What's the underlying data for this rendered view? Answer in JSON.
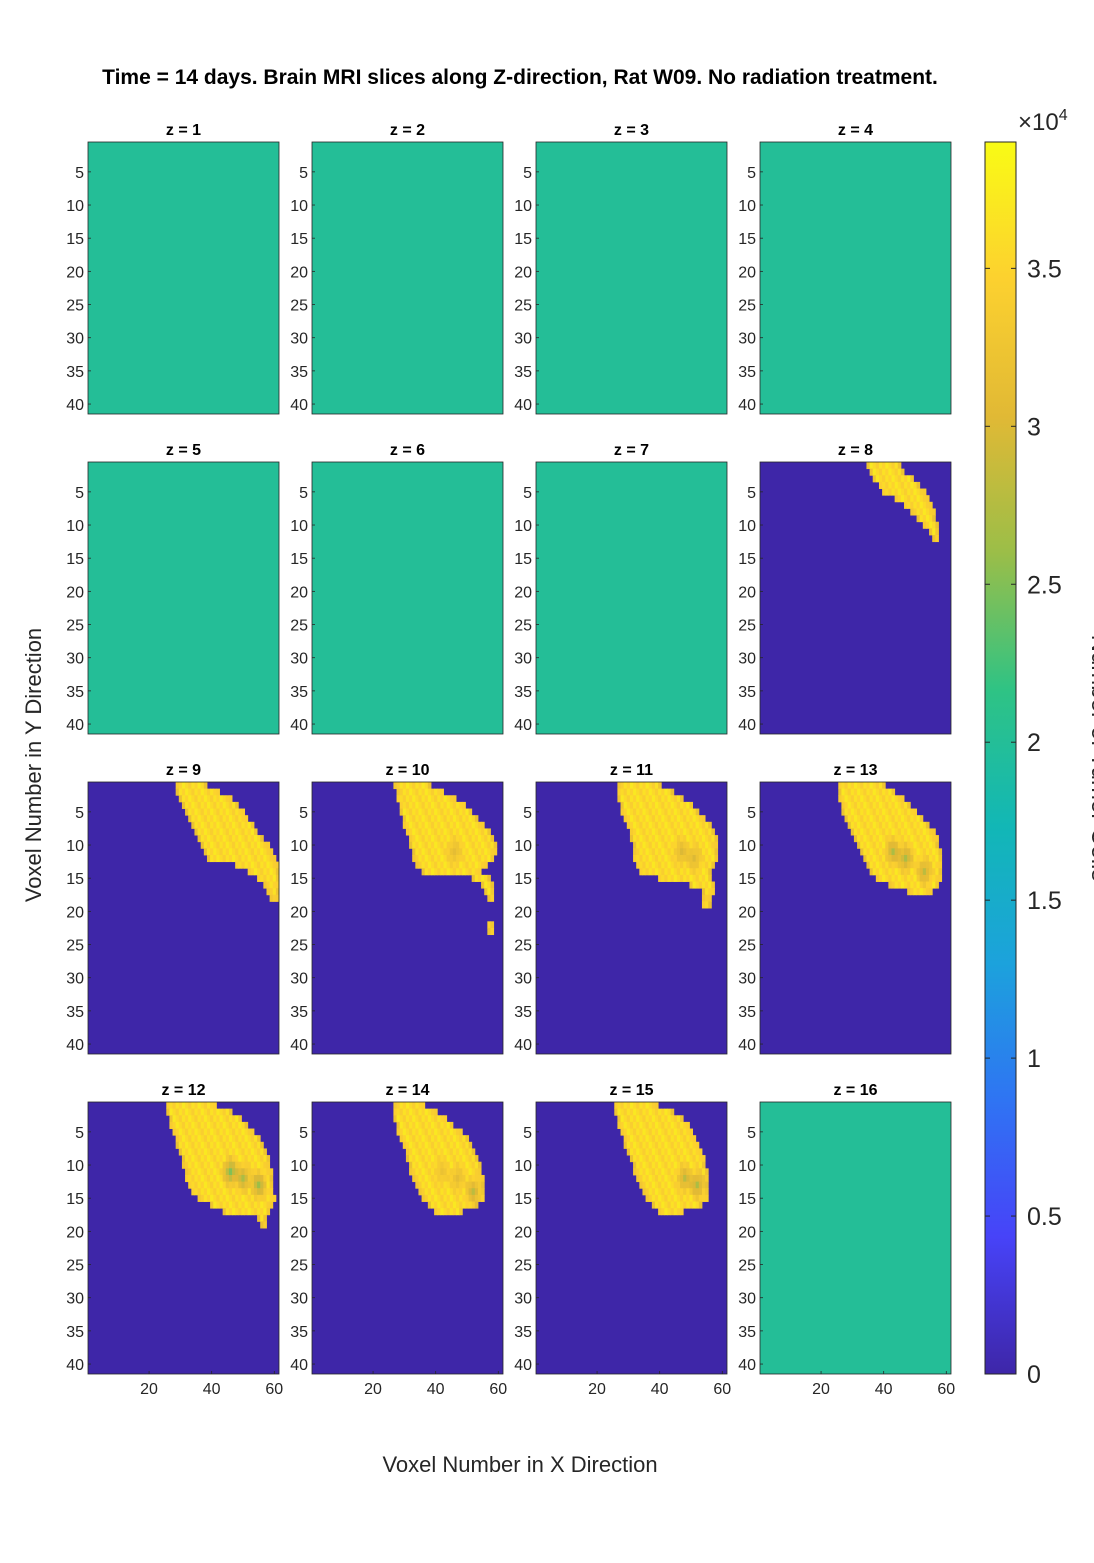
{
  "chart_data": {
    "type": "heatmap",
    "title": "Time = 14 days. Brain MRI slices along Z-direction, Rat W09. No radiation treatment.",
    "xlabel": "Voxel Number in X Direction",
    "ylabel": "Voxel Number in Y Direction",
    "grid_shape": [
      4,
      4
    ],
    "x_range": [
      1,
      61
    ],
    "y_range": [
      1,
      41
    ],
    "x_ticks": [
      20,
      40,
      60
    ],
    "y_ticks": [
      5,
      10,
      15,
      20,
      25,
      30,
      35,
      40
    ],
    "grid": false,
    "colorbar": {
      "label": "Number of Tumor Cells",
      "exponent_label": "×10",
      "exponent": "4",
      "range": [
        0,
        39000
      ],
      "ticks": [
        0,
        0.5,
        1,
        1.5,
        2,
        2.5,
        3,
        3.5
      ],
      "tick_labels": [
        "0",
        "0.5",
        "1",
        "1.5",
        "2",
        "2.5",
        "3",
        "3.5"
      ],
      "colormap": "parula",
      "colors": [
        "#3e26a8",
        "#4743f8",
        "#2f74f3",
        "#1ca2dc",
        "#12b7b6",
        "#2fc384",
        "#9bbe48",
        "#e1b935",
        "#fcd12f",
        "#f9fb15"
      ]
    },
    "panels": [
      {
        "label": "z = 1",
        "uniform_value": 20000
      },
      {
        "label": "z = 2",
        "uniform_value": 20000
      },
      {
        "label": "z = 3",
        "uniform_value": 20000
      },
      {
        "label": "z = 4",
        "uniform_value": 20000
      },
      {
        "label": "z = 5",
        "uniform_value": 20000
      },
      {
        "label": "z = 6",
        "uniform_value": 20000
      },
      {
        "label": "z = 7",
        "uniform_value": 20000
      },
      {
        "label": "z = 8",
        "background_value": 0,
        "tumor_rows": [
          [
            1,
            35,
            45
          ],
          [
            2,
            36,
            46
          ],
          [
            3,
            37,
            49
          ],
          [
            4,
            39,
            51
          ],
          [
            5,
            40,
            53
          ],
          [
            6,
            44,
            54
          ],
          [
            7,
            47,
            55
          ],
          [
            8,
            49,
            56
          ],
          [
            9,
            51,
            56
          ],
          [
            10,
            53,
            57
          ],
          [
            11,
            55,
            57
          ],
          [
            12,
            56,
            57
          ]
        ],
        "peak_value": 37000
      },
      {
        "label": "z = 9",
        "background_value": 0,
        "tumor_rows": [
          [
            1,
            29,
            38
          ],
          [
            2,
            29,
            42
          ],
          [
            3,
            30,
            46
          ],
          [
            4,
            31,
            48
          ],
          [
            5,
            32,
            50
          ],
          [
            6,
            33,
            51
          ],
          [
            7,
            34,
            53
          ],
          [
            8,
            35,
            54
          ],
          [
            9,
            36,
            56
          ],
          [
            10,
            37,
            58
          ],
          [
            11,
            38,
            59
          ],
          [
            12,
            39,
            60
          ],
          [
            13,
            48,
            61
          ],
          [
            14,
            52,
            61
          ],
          [
            15,
            55,
            61
          ],
          [
            16,
            57,
            61
          ],
          [
            17,
            58,
            61
          ],
          [
            18,
            59,
            61
          ]
        ],
        "peak_value": 37000
      },
      {
        "label": "z = 10",
        "background_value": 0,
        "hotspots": [
          [
            46,
            11,
            31000
          ]
        ],
        "tumor_rows": [
          [
            1,
            27,
            38
          ],
          [
            2,
            28,
            42
          ],
          [
            3,
            28,
            46
          ],
          [
            4,
            29,
            49
          ],
          [
            5,
            29,
            51
          ],
          [
            6,
            30,
            53
          ],
          [
            7,
            30,
            55
          ],
          [
            8,
            31,
            57
          ],
          [
            9,
            32,
            58
          ],
          [
            10,
            32,
            59
          ],
          [
            11,
            33,
            59
          ],
          [
            12,
            33,
            58
          ],
          [
            13,
            34,
            56
          ],
          [
            14,
            36,
            54
          ],
          [
            15,
            52,
            57
          ],
          [
            16,
            55,
            58
          ],
          [
            17,
            56,
            58
          ],
          [
            18,
            57,
            58
          ],
          [
            22,
            57,
            58
          ],
          [
            23,
            57,
            58
          ]
        ],
        "peak_value": 37000
      },
      {
        "label": "z = 11",
        "background_value": 0,
        "hotspots": [
          [
            47,
            11,
            30000
          ],
          [
            51,
            12,
            30000
          ]
        ],
        "tumor_rows": [
          [
            1,
            27,
            40
          ],
          [
            2,
            27,
            44
          ],
          [
            3,
            27,
            47
          ],
          [
            4,
            28,
            50
          ],
          [
            5,
            28,
            52
          ],
          [
            6,
            29,
            54
          ],
          [
            7,
            30,
            56
          ],
          [
            8,
            31,
            57
          ],
          [
            9,
            31,
            58
          ],
          [
            10,
            32,
            58
          ],
          [
            11,
            32,
            58
          ],
          [
            12,
            32,
            58
          ],
          [
            13,
            33,
            57
          ],
          [
            14,
            34,
            56
          ],
          [
            15,
            40,
            56
          ],
          [
            16,
            50,
            57
          ],
          [
            17,
            54,
            57
          ],
          [
            18,
            54,
            56
          ],
          [
            19,
            54,
            56
          ]
        ],
        "peak_value": 37000
      },
      {
        "label": "z = 13",
        "background_value": 0,
        "hotspots": [
          [
            43,
            11,
            27000
          ],
          [
            47,
            12,
            27000
          ],
          [
            53,
            14,
            28000
          ]
        ],
        "tumor_rows": [
          [
            1,
            26,
            40
          ],
          [
            2,
            26,
            43
          ],
          [
            3,
            26,
            46
          ],
          [
            4,
            27,
            48
          ],
          [
            5,
            27,
            50
          ],
          [
            6,
            28,
            52
          ],
          [
            7,
            29,
            54
          ],
          [
            8,
            30,
            56
          ],
          [
            9,
            31,
            57
          ],
          [
            10,
            32,
            57
          ],
          [
            11,
            33,
            58
          ],
          [
            12,
            34,
            58
          ],
          [
            13,
            35,
            58
          ],
          [
            14,
            36,
            58
          ],
          [
            15,
            38,
            58
          ],
          [
            16,
            42,
            57
          ],
          [
            17,
            48,
            55
          ]
        ],
        "peak_value": 37000
      },
      {
        "label": "z = 12",
        "background_value": 0,
        "hotspots": [
          [
            46,
            11,
            25000
          ],
          [
            50,
            12,
            27000
          ],
          [
            55,
            13,
            26000
          ]
        ],
        "tumor_rows": [
          [
            1,
            26,
            41
          ],
          [
            2,
            26,
            46
          ],
          [
            3,
            27,
            49
          ],
          [
            4,
            27,
            51
          ],
          [
            5,
            28,
            53
          ],
          [
            6,
            29,
            55
          ],
          [
            7,
            29,
            56
          ],
          [
            8,
            30,
            57
          ],
          [
            9,
            31,
            58
          ],
          [
            10,
            31,
            58
          ],
          [
            11,
            32,
            59
          ],
          [
            12,
            32,
            59
          ],
          [
            13,
            33,
            59
          ],
          [
            14,
            34,
            59
          ],
          [
            15,
            36,
            60
          ],
          [
            16,
            40,
            59
          ],
          [
            17,
            44,
            58
          ],
          [
            18,
            55,
            57
          ],
          [
            19,
            56,
            57
          ]
        ],
        "peak_value": 37000
      },
      {
        "label": "z = 14",
        "background_value": 0,
        "hotspots": [
          [
            42,
            11,
            32000
          ],
          [
            47,
            12,
            31000
          ],
          [
            52,
            14,
            28000
          ]
        ],
        "tumor_rows": [
          [
            1,
            27,
            36
          ],
          [
            2,
            27,
            40
          ],
          [
            3,
            27,
            43
          ],
          [
            4,
            28,
            45
          ],
          [
            5,
            28,
            48
          ],
          [
            6,
            29,
            50
          ],
          [
            7,
            30,
            51
          ],
          [
            8,
            31,
            52
          ],
          [
            9,
            31,
            53
          ],
          [
            10,
            32,
            54
          ],
          [
            11,
            32,
            54
          ],
          [
            12,
            33,
            55
          ],
          [
            13,
            34,
            55
          ],
          [
            14,
            35,
            55
          ],
          [
            15,
            36,
            55
          ],
          [
            16,
            38,
            53
          ],
          [
            17,
            40,
            48
          ]
        ],
        "peak_value": 37000
      },
      {
        "label": "z = 15",
        "background_value": 0,
        "hotspots": [
          [
            48,
            12,
            28000
          ],
          [
            52,
            13,
            27000
          ]
        ],
        "tumor_rows": [
          [
            1,
            26,
            39
          ],
          [
            2,
            26,
            44
          ],
          [
            3,
            27,
            47
          ],
          [
            4,
            27,
            49
          ],
          [
            5,
            28,
            50
          ],
          [
            6,
            29,
            51
          ],
          [
            7,
            29,
            52
          ],
          [
            8,
            30,
            53
          ],
          [
            9,
            31,
            54
          ],
          [
            10,
            32,
            54
          ],
          [
            11,
            32,
            55
          ],
          [
            12,
            33,
            55
          ],
          [
            13,
            34,
            55
          ],
          [
            14,
            35,
            55
          ],
          [
            15,
            36,
            55
          ],
          [
            16,
            38,
            53
          ],
          [
            17,
            40,
            47
          ]
        ],
        "peak_value": 37000
      },
      {
        "label": "z = 16",
        "uniform_value": 20000
      }
    ]
  }
}
